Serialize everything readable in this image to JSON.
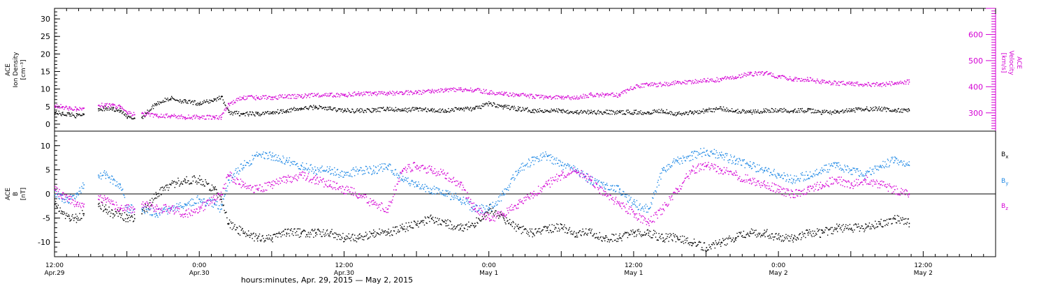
{
  "colors": {
    "black": "#000000",
    "magenta": "#d400d4",
    "blue": "#1e88e5"
  },
  "chart_data": [
    {
      "type": "scatter",
      "panel": "top",
      "left_axis": {
        "label_lines": [
          "ACE",
          "Ion Density",
          "[cm⁻³]"
        ],
        "ylim": [
          -2,
          33
        ],
        "ticks": [
          0,
          5,
          10,
          15,
          20,
          25,
          30
        ]
      },
      "right_axis": {
        "label_lines": [
          "ACE",
          "Velocity",
          "[km/s]"
        ],
        "ylim": [
          230,
          700
        ],
        "ticks": [
          300,
          400,
          500,
          600
        ]
      },
      "series": [
        {
          "name": "Ion Density",
          "color": "#000000",
          "axis": "left",
          "x": [
            0,
            0.05,
            0.1,
            0.15,
            0.2,
            0.3,
            0.35,
            0.4,
            0.45,
            0.5,
            0.55,
            0.6,
            0.7,
            0.8,
            0.9,
            1.0,
            1.1,
            1.15,
            1.2,
            1.3,
            1.4,
            1.5,
            1.6,
            1.7,
            1.8,
            1.9,
            2.0,
            2.1,
            2.2,
            2.3,
            2.4,
            2.5,
            2.6,
            2.7,
            2.8,
            2.9,
            3.0,
            3.1,
            3.2,
            3.3,
            3.4,
            3.5,
            3.6,
            3.7,
            3.8,
            3.9,
            4.0,
            4.1,
            4.2,
            4.3,
            4.4,
            4.5,
            4.6,
            4.7,
            4.8,
            4.9,
            5.0,
            5.1,
            5.2,
            5.3,
            5.4,
            5.5,
            5.6,
            5.7,
            5.8,
            5.9
          ],
          "y": [
            3.5,
            3,
            3,
            2.5,
            3,
            4.5,
            4.5,
            4.5,
            4,
            2,
            1.8,
            2,
            6,
            7.5,
            6.5,
            6,
            7,
            8,
            3.5,
            3,
            3,
            3.5,
            4,
            4.5,
            5,
            4.5,
            4,
            4,
            4,
            4.5,
            4,
            4.5,
            4,
            4,
            4.5,
            4.5,
            6,
            5,
            4.5,
            4,
            4,
            4,
            3.5,
            3.5,
            3.5,
            3.5,
            3.5,
            3.5,
            4,
            3,
            3.5,
            4,
            4.5,
            4,
            3.5,
            4,
            4,
            4,
            4,
            3.5,
            3.5,
            4,
            4.5,
            4.5,
            4,
            4
          ]
        },
        {
          "name": "Velocity",
          "color": "#d400d4",
          "axis": "right",
          "x": [
            0,
            0.05,
            0.1,
            0.15,
            0.2,
            0.3,
            0.35,
            0.4,
            0.45,
            0.5,
            0.55,
            0.6,
            0.7,
            0.8,
            0.9,
            1.0,
            1.1,
            1.15,
            1.2,
            1.3,
            1.4,
            1.5,
            1.6,
            1.7,
            1.8,
            1.9,
            2.0,
            2.1,
            2.2,
            2.3,
            2.4,
            2.5,
            2.6,
            2.7,
            2.8,
            2.9,
            3.0,
            3.1,
            3.2,
            3.3,
            3.4,
            3.5,
            3.6,
            3.7,
            3.8,
            3.9,
            4.0,
            4.1,
            4.2,
            4.3,
            4.4,
            4.5,
            4.6,
            4.7,
            4.8,
            4.9,
            5.0,
            5.1,
            5.2,
            5.3,
            5.4,
            5.5,
            5.6,
            5.7,
            5.8,
            5.9
          ],
          "y": [
            330,
            325,
            320,
            315,
            320,
            330,
            330,
            330,
            325,
            300,
            295,
            300,
            290,
            290,
            285,
            285,
            285,
            285,
            335,
            360,
            360,
            360,
            365,
            365,
            370,
            370,
            370,
            375,
            375,
            375,
            380,
            380,
            385,
            390,
            390,
            390,
            380,
            375,
            370,
            365,
            360,
            360,
            360,
            370,
            370,
            370,
            400,
            410,
            410,
            420,
            420,
            425,
            430,
            440,
            450,
            455,
            440,
            430,
            430,
            420,
            415,
            415,
            410,
            410,
            415,
            420
          ]
        }
      ],
      "segments": [
        [
          0,
          0.2
        ],
        [
          0.3,
          0.55
        ],
        [
          0.6,
          5.9
        ]
      ]
    },
    {
      "type": "scatter",
      "panel": "bottom",
      "left_axis": {
        "label_lines": [
          "ACE",
          "B",
          "[nT]"
        ],
        "ylim": [
          -13,
          13
        ],
        "ticks": [
          -10,
          -5,
          0,
          5,
          10
        ]
      },
      "zero_line": true,
      "legend": [
        "Bx",
        "By",
        "Bz"
      ],
      "series": [
        {
          "name": "Bx",
          "color": "#000000",
          "x": [
            0,
            0.05,
            0.1,
            0.15,
            0.2,
            0.3,
            0.35,
            0.4,
            0.45,
            0.5,
            0.55,
            0.6,
            0.7,
            0.8,
            0.9,
            1.0,
            1.1,
            1.15,
            1.2,
            1.3,
            1.4,
            1.5,
            1.6,
            1.7,
            1.8,
            1.9,
            2.0,
            2.1,
            2.2,
            2.3,
            2.4,
            2.5,
            2.6,
            2.7,
            2.8,
            2.9,
            3.0,
            3.1,
            3.2,
            3.3,
            3.4,
            3.5,
            3.6,
            3.7,
            3.8,
            3.9,
            4.0,
            4.1,
            4.2,
            4.3,
            4.4,
            4.5,
            4.6,
            4.7,
            4.8,
            4.9,
            5.0,
            5.1,
            5.2,
            5.3,
            5.4,
            5.5,
            5.6,
            5.7,
            5.8,
            5.9
          ],
          "y": [
            -2,
            -4,
            -5,
            -5,
            -4,
            -2,
            -3,
            -4,
            -4,
            -5,
            -5,
            -4,
            0,
            2,
            3,
            3,
            1,
            -1,
            -6,
            -8,
            -9,
            -9,
            -8,
            -8,
            -8,
            -8,
            -9,
            -9,
            -8,
            -8,
            -7,
            -6,
            -5,
            -6,
            -7,
            -6,
            -3,
            -5,
            -7,
            -8,
            -7,
            -7,
            -8,
            -8,
            -9,
            -9,
            -8,
            -8,
            -9,
            -9,
            -10,
            -11,
            -10,
            -9,
            -8,
            -8,
            -9,
            -9,
            -8,
            -8,
            -7,
            -7,
            -7,
            -6,
            -5,
            -6
          ]
        },
        {
          "name": "By",
          "color": "#1e88e5",
          "x": [
            0,
            0.05,
            0.1,
            0.15,
            0.2,
            0.3,
            0.35,
            0.4,
            0.45,
            0.5,
            0.55,
            0.6,
            0.7,
            0.8,
            0.9,
            1.0,
            1.1,
            1.15,
            1.2,
            1.3,
            1.4,
            1.5,
            1.6,
            1.7,
            1.8,
            1.9,
            2.0,
            2.1,
            2.2,
            2.3,
            2.4,
            2.5,
            2.6,
            2.7,
            2.8,
            2.9,
            3.0,
            3.1,
            3.2,
            3.3,
            3.4,
            3.5,
            3.6,
            3.7,
            3.8,
            3.9,
            4.0,
            4.1,
            4.2,
            4.3,
            4.4,
            4.5,
            4.6,
            4.7,
            4.8,
            4.9,
            5.0,
            5.1,
            5.2,
            5.3,
            5.4,
            5.5,
            5.6,
            5.7,
            5.8,
            5.9
          ],
          "y": [
            0,
            -1,
            -1,
            0,
            2,
            4,
            4,
            3,
            2,
            -3,
            -3,
            -3,
            -4,
            -3,
            -2,
            -1,
            -2,
            -3,
            3,
            6,
            8,
            8,
            7,
            6,
            5,
            5,
            4,
            5,
            5,
            6,
            3,
            2,
            1,
            0,
            -1,
            -3,
            -3,
            0,
            5,
            7,
            8,
            6,
            5,
            3,
            2,
            1,
            -2,
            -3,
            5,
            7,
            8,
            9,
            8,
            7,
            6,
            5,
            4,
            3,
            4,
            5,
            6,
            5,
            4,
            6,
            7,
            6
          ]
        },
        {
          "name": "Bz",
          "color": "#d400d4",
          "x": [
            0,
            0.05,
            0.1,
            0.15,
            0.2,
            0.3,
            0.35,
            0.4,
            0.45,
            0.5,
            0.55,
            0.6,
            0.7,
            0.8,
            0.9,
            1.0,
            1.1,
            1.15,
            1.2,
            1.3,
            1.4,
            1.5,
            1.6,
            1.7,
            1.8,
            1.9,
            2.0,
            2.1,
            2.2,
            2.3,
            2.4,
            2.5,
            2.6,
            2.7,
            2.8,
            2.9,
            3.0,
            3.1,
            3.2,
            3.3,
            3.4,
            3.5,
            3.6,
            3.7,
            3.8,
            3.9,
            4.0,
            4.1,
            4.2,
            4.3,
            4.4,
            4.5,
            4.6,
            4.7,
            4.8,
            4.9,
            5.0,
            5.1,
            5.2,
            5.3,
            5.4,
            5.5,
            5.6,
            5.7,
            5.8,
            5.9
          ],
          "y": [
            1,
            0,
            -1,
            -2,
            -2,
            -1,
            -1,
            -2,
            -3,
            -3,
            -3,
            -2,
            -3,
            -3,
            -4,
            -3,
            -1,
            0,
            4,
            2,
            1,
            2,
            3,
            4,
            3,
            2,
            1,
            0,
            -2,
            -3,
            5,
            6,
            5,
            4,
            2,
            -3,
            -5,
            -4,
            -2,
            0,
            2,
            4,
            5,
            3,
            0,
            -2,
            -4,
            -6,
            -3,
            1,
            5,
            6,
            5,
            4,
            3,
            2,
            1,
            0,
            1,
            2,
            3,
            2,
            3,
            2,
            1,
            0
          ]
        }
      ],
      "segments": [
        [
          0,
          0.2
        ],
        [
          0.3,
          0.55
        ],
        [
          0.6,
          5.9
        ]
      ]
    }
  ],
  "x_axis": {
    "ticks": [
      {
        "x": 0,
        "line1": "12:00",
        "line2": "Apr.29"
      },
      {
        "x": 1,
        "line1": "0:00",
        "line2": "Apr.30"
      },
      {
        "x": 2,
        "line1": "12:00",
        "line2": "Apr.30"
      },
      {
        "x": 3,
        "line1": "0:00",
        "line2": "May 1"
      },
      {
        "x": 4,
        "line1": "12:00",
        "line2": "May 1"
      },
      {
        "x": 5,
        "line1": "0:00",
        "line2": "May 2"
      },
      {
        "x": 6,
        "line1": "12:00",
        "line2": "May 2"
      }
    ],
    "xlim": [
      0,
      6.5
    ],
    "label": "hours:minutes, Apr. 29, 2015 — May  2, 2015"
  }
}
